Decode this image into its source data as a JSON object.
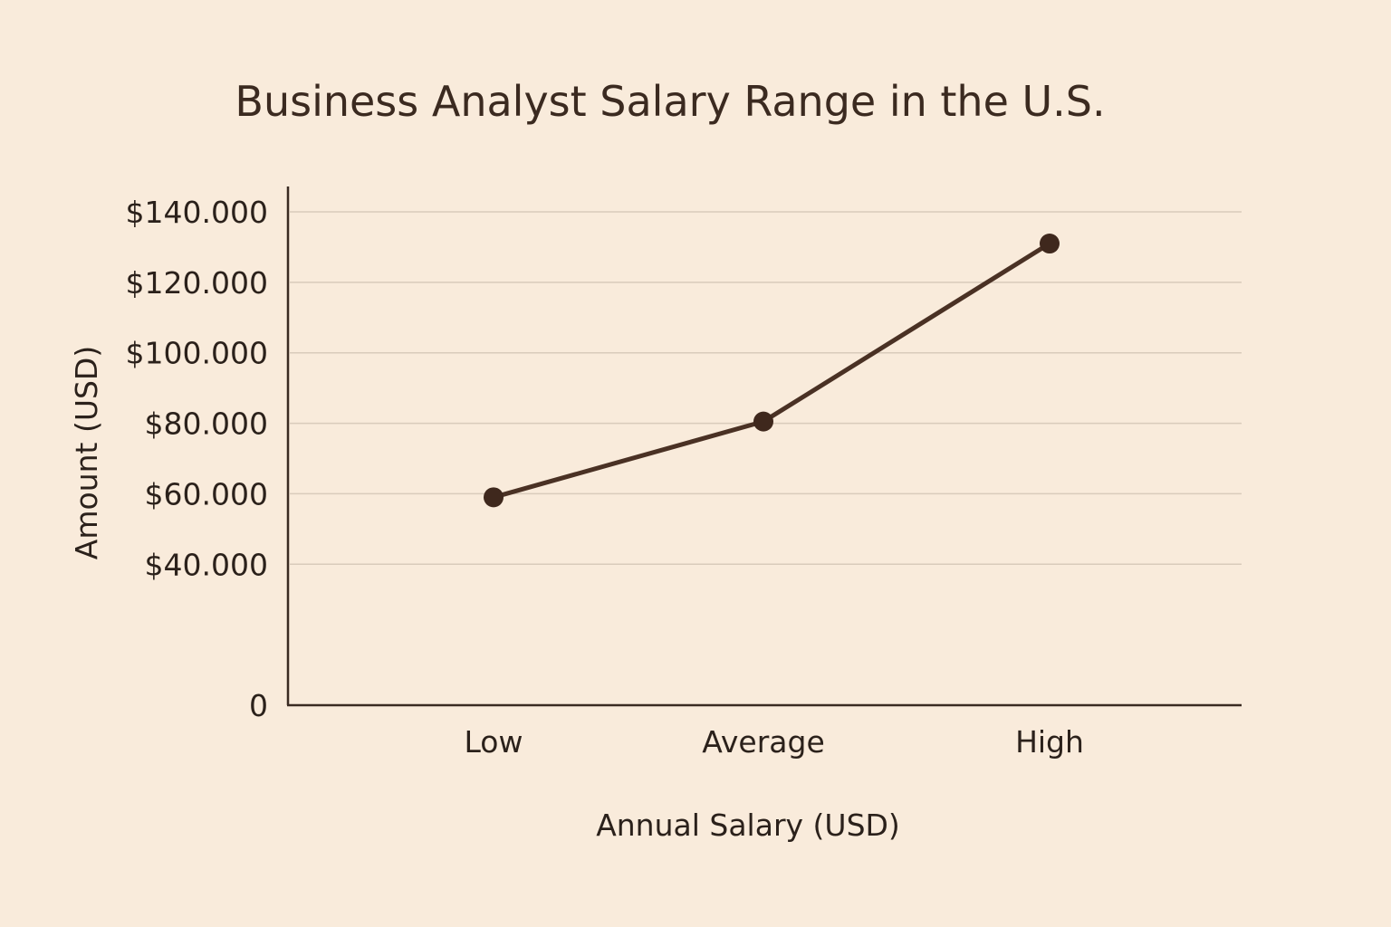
{
  "chart_data": {
    "type": "line",
    "title": "Business Analyst Salary Range in the U.S.",
    "xlabel": "Annual Salary (USD)",
    "ylabel": "Amount (USD)",
    "categories": [
      "Low",
      "Average",
      "High"
    ],
    "series": [
      {
        "values": [
          59000,
          80500,
          131000
        ]
      }
    ],
    "ylim": [
      0,
      140000
    ],
    "yticks": [
      0,
      40000,
      60000,
      80000,
      100000,
      120000,
      140000
    ],
    "ytick_labels": [
      "0",
      "$40.000",
      "$60.000",
      "$80.000",
      "$100.000",
      "$120.000",
      "$140.000"
    ],
    "grid": true,
    "legend": "none",
    "colors": {
      "background": "#f9ebdb",
      "line": "#4a3124",
      "marker": "#3f281d",
      "grid": "#d9cbbb",
      "text": "#2b211b"
    }
  }
}
